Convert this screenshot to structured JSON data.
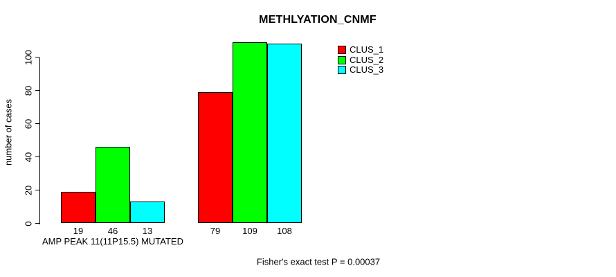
{
  "chart_data": {
    "type": "bar",
    "title": "METHLYATION_CNMF",
    "ylabel": "number of cases",
    "xlabel": "",
    "ylim": [
      0,
      110
    ],
    "yticks": [
      0,
      20,
      40,
      60,
      80,
      100
    ],
    "grid": false,
    "legend_position": "top-right",
    "show_bar_value_labels": true,
    "series": [
      {
        "name": "CLUS_1",
        "color": "#ff0000"
      },
      {
        "name": "CLUS_2",
        "color": "#00ff00"
      },
      {
        "name": "CLUS_3",
        "color": "#00ffff"
      }
    ],
    "groups": [
      {
        "label": "AMP PEAK 11(11P15.5) MUTATED",
        "values": [
          19,
          46,
          13
        ]
      },
      {
        "label": "",
        "values": [
          79,
          109,
          108
        ]
      }
    ],
    "annotation": "Fisher's exact test P = 0.00037"
  }
}
